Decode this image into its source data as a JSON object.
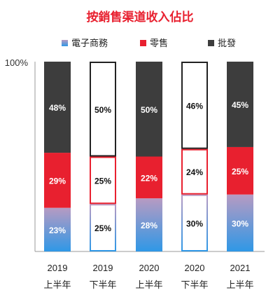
{
  "chart_data": {
    "type": "bar",
    "stacked": true,
    "title": "按銷售渠道收入佔比",
    "categories": [
      {
        "year": "2019",
        "half": "上半年"
      },
      {
        "year": "2019",
        "half": "下半年"
      },
      {
        "year": "2020",
        "half": "上半年"
      },
      {
        "year": "2020",
        "half": "下半年"
      },
      {
        "year": "2021",
        "half": "上半年"
      }
    ],
    "series": [
      {
        "name": "電子商務",
        "values": [
          23,
          25,
          28,
          30,
          30
        ],
        "labels": [
          "23%",
          "25%",
          "28%",
          "30%",
          "30%"
        ]
      },
      {
        "name": "零售",
        "values": [
          29,
          25,
          22,
          24,
          25
        ],
        "labels": [
          "29%",
          "25%",
          "22%",
          "24%",
          "25%"
        ]
      },
      {
        "name": "批發",
        "values": [
          48,
          50,
          50,
          46,
          45
        ],
        "labels": [
          "48%",
          "50%",
          "50%",
          "46%",
          "45%"
        ]
      }
    ],
    "outlined_bars": [
      1,
      3
    ],
    "ylim": [
      0,
      100
    ],
    "ytick_label": "100%",
    "colors": {
      "ecommerce_top": "#b79ac2",
      "ecommerce_bottom": "#2f98e6",
      "retail": "#e8202f",
      "wholesale": "#3d3d3d",
      "title": "#e8202f",
      "axis": "#999999"
    },
    "legend_position": "top"
  }
}
